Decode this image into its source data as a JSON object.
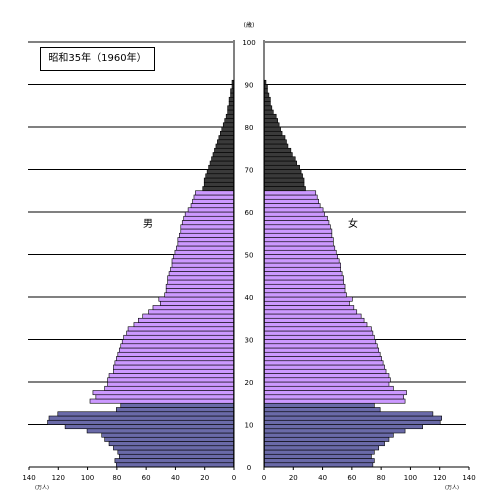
{
  "chart_data": {
    "type": "bar",
    "orientation": "horizontal-pyramid",
    "title": "昭和35年（1960年）",
    "age_axis_unit": "(歳)",
    "age_ticks": [
      "0",
      "10",
      "20",
      "30",
      "40",
      "50",
      "60",
      "70",
      "80",
      "90",
      "100"
    ],
    "x_unit_left": "(万人)",
    "x_unit_right": "(万人)",
    "x_ticks": [
      "140",
      "120",
      "100",
      "80",
      "60",
      "40",
      "20",
      "0",
      "0",
      "20",
      "40",
      "60",
      "80",
      "100",
      "120",
      "140"
    ],
    "xlim": [
      0,
      140
    ],
    "male_label": "男",
    "female_label": "女",
    "colors": {
      "young": "#6a6aa8",
      "working": "#cc99ff",
      "old": "#3a3a3a",
      "grid": "#000000"
    },
    "age_groups": {
      "young_max_age": 14,
      "working_max_age": 64
    },
    "male": [
      80,
      81,
      78,
      79,
      82,
      85,
      88,
      90,
      100,
      115,
      127,
      126,
      120,
      80,
      77,
      98,
      94,
      96,
      88,
      86,
      86,
      85,
      82,
      82,
      81,
      80,
      79,
      78,
      77,
      76,
      75,
      73,
      72,
      68,
      65,
      62,
      58,
      55,
      50,
      51,
      47,
      46,
      46,
      45,
      45,
      44,
      43,
      42,
      42,
      41,
      40,
      39,
      38,
      38,
      37,
      36,
      36,
      35,
      34,
      33,
      31,
      29,
      28,
      27,
      26,
      21,
      20,
      20,
      19,
      18,
      17,
      16,
      15,
      14,
      13,
      12,
      11,
      10,
      9,
      8,
      7,
      6,
      5,
      4,
      4,
      3,
      3,
      2,
      2,
      1,
      1
    ],
    "female": [
      74,
      75,
      73,
      75,
      78,
      82,
      85,
      88,
      96,
      108,
      120,
      121,
      115,
      79,
      75,
      96,
      95,
      97,
      88,
      85,
      86,
      85,
      83,
      82,
      81,
      80,
      79,
      78,
      77,
      76,
      75,
      74,
      73,
      70,
      68,
      66,
      63,
      61,
      58,
      60,
      56,
      55,
      55,
      54,
      54,
      53,
      52,
      52,
      51,
      50,
      49,
      48,
      47,
      47,
      46,
      46,
      45,
      44,
      43,
      41,
      40,
      38,
      37,
      36,
      35,
      28,
      27,
      27,
      26,
      25,
      24,
      22,
      21,
      19,
      18,
      16,
      15,
      14,
      12,
      11,
      10,
      9,
      8,
      6,
      5,
      4,
      4,
      3,
      2,
      2,
      1
    ]
  }
}
